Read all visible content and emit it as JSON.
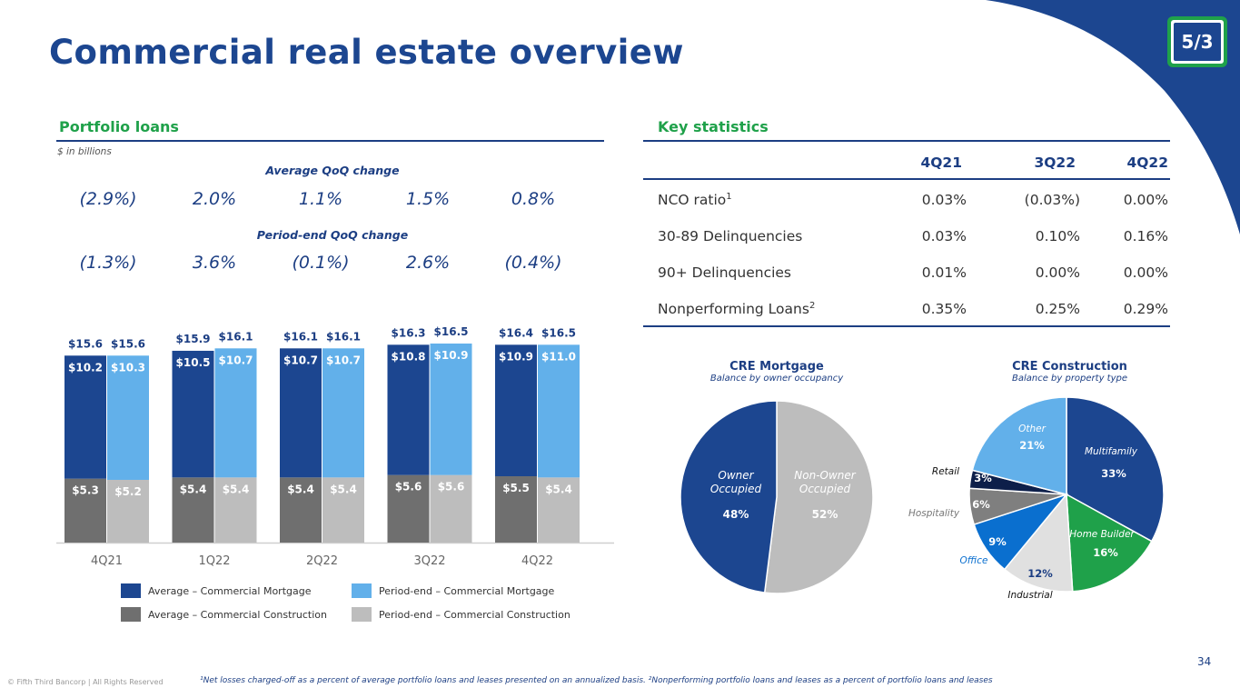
{
  "title": "Commercial real estate overview",
  "brand_colors": {
    "navy": "#1c4690",
    "green": "#1fa14a",
    "light_blue": "#62b0ea",
    "dark_gray": "#6f6f6f",
    "light_gray": "#bdbdbd"
  },
  "logo": {
    "text": "5/3"
  },
  "portfolio": {
    "title": "Portfolio loans",
    "units": "$ in billions",
    "avg_qoq_label": "Average QoQ change",
    "avg_qoq": [
      "(2.9%)",
      "2.0%",
      "1.1%",
      "1.5%",
      "0.8%"
    ],
    "pe_qoq_label": "Period-end QoQ change",
    "pe_qoq": [
      "(1.3%)",
      "3.6%",
      "(0.1%)",
      "2.6%",
      "(0.4%)"
    ],
    "legend": [
      {
        "label": "Average – Commercial Mortgage",
        "color": "#1c4690"
      },
      {
        "label": "Period-end – Commercial Mortgage",
        "color": "#62b0ea"
      },
      {
        "label": "Average – Commercial Construction",
        "color": "#6f6f6f"
      },
      {
        "label": "Period-end – Commercial Construction",
        "color": "#bdbdbd"
      }
    ]
  },
  "chart_data": [
    {
      "type": "bar",
      "title": "Portfolio loans",
      "units": "$ in billions",
      "categories": [
        "4Q21",
        "1Q22",
        "2Q22",
        "3Q22",
        "4Q22"
      ],
      "stacked": true,
      "groups": [
        {
          "name": "Average",
          "series": [
            {
              "name": "Average – Commercial Construction",
              "values": [
                5.3,
                5.4,
                5.4,
                5.6,
                5.5
              ],
              "labels": [
                "$5.3",
                "$5.4",
                "$5.4",
                "$5.6",
                "$5.5"
              ],
              "color": "#6f6f6f"
            },
            {
              "name": "Average – Commercial Mortgage",
              "values": [
                10.2,
                10.5,
                10.7,
                10.8,
                10.9
              ],
              "labels": [
                "$10.2",
                "$10.5",
                "$10.7",
                "$10.8",
                "$10.9"
              ],
              "color": "#1c4690"
            }
          ],
          "totals": [
            "$15.6",
            "$15.9",
            "$16.1",
            "$16.3",
            "$16.4"
          ]
        },
        {
          "name": "Period-end",
          "series": [
            {
              "name": "Period-end – Commercial Construction",
              "values": [
                5.2,
                5.4,
                5.4,
                5.6,
                5.4
              ],
              "labels": [
                "$5.2",
                "$5.4",
                "$5.4",
                "$5.6",
                "$5.4"
              ],
              "color": "#bdbdbd"
            },
            {
              "name": "Period-end – Commercial Mortgage",
              "values": [
                10.3,
                10.7,
                10.7,
                10.9,
                11.0
              ],
              "labels": [
                "$10.3",
                "$10.7",
                "$10.7",
                "$10.9",
                "$11.0"
              ],
              "color": "#62b0ea"
            }
          ],
          "totals": [
            "$15.6",
            "$16.1",
            "$16.1",
            "$16.5",
            "$16.5"
          ]
        }
      ],
      "ylim": [
        0,
        17
      ]
    },
    {
      "type": "pie",
      "title": "CRE Mortgage",
      "subtitle": "Balance by owner occupancy",
      "slices": [
        {
          "label": "Non-Owner Occupied",
          "value": 52,
          "pct": "52%",
          "color": "#bdbdbd"
        },
        {
          "label": "Owner Occupied",
          "value": 48,
          "pct": "48%",
          "color": "#1c4690"
        }
      ]
    },
    {
      "type": "pie",
      "title": "CRE Construction",
      "subtitle": "Balance by property type",
      "slices": [
        {
          "label": "Multifamily",
          "value": 33,
          "pct": "33%",
          "color": "#1c4690"
        },
        {
          "label": "Home Builder",
          "value": 16,
          "pct": "16%",
          "color": "#1fa14a"
        },
        {
          "label": "Industrial",
          "value": 12,
          "pct": "12%",
          "color": "#e0e0e0"
        },
        {
          "label": "Office",
          "value": 9,
          "pct": "9%",
          "color": "#0a6fcf"
        },
        {
          "label": "Hospitality",
          "value": 6,
          "pct": "6%",
          "color": "#7f7f7f"
        },
        {
          "label": "Retail",
          "value": 3,
          "pct": "3%",
          "color": "#0d1f4a"
        },
        {
          "label": "Other",
          "value": 21,
          "pct": "21%",
          "color": "#62b0ea"
        }
      ]
    }
  ],
  "key_stats": {
    "title": "Key statistics",
    "columns": [
      "4Q21",
      "3Q22",
      "4Q22"
    ],
    "rows": [
      {
        "label": "NCO ratio",
        "sup": "1",
        "values": [
          "0.03%",
          "(0.03%)",
          "0.00%"
        ]
      },
      {
        "label": "30-89 Delinquencies",
        "sup": "",
        "values": [
          "0.03%",
          "0.10%",
          "0.16%"
        ]
      },
      {
        "label": "90+ Delinquencies",
        "sup": "",
        "values": [
          "0.01%",
          "0.00%",
          "0.00%"
        ]
      },
      {
        "label": "Nonperforming Loans",
        "sup": "2",
        "values": [
          "0.35%",
          "0.25%",
          "0.29%"
        ]
      }
    ]
  },
  "footer": {
    "copyright": "© Fifth Third Bancorp | All Rights Reserved",
    "footnote": "¹Net losses charged-off as a percent of average portfolio loans and leases presented on an annualized basis. ²Nonperforming portfolio loans and leases as a percent of portfolio loans and leases",
    "page": "34"
  }
}
